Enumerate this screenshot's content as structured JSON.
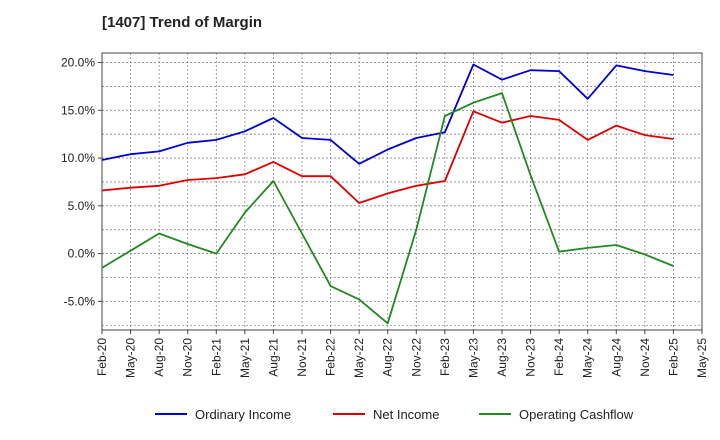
{
  "chart_data": {
    "type": "line",
    "title": "[1407]  Trend of Margin",
    "x": [
      "Feb-20",
      "May-20",
      "Aug-20",
      "Nov-20",
      "Feb-21",
      "May-21",
      "Aug-21",
      "Nov-21",
      "Feb-22",
      "May-22",
      "Aug-22",
      "Nov-22",
      "Feb-23",
      "May-23",
      "Aug-23",
      "Nov-23",
      "Feb-24",
      "May-24",
      "Aug-24",
      "Nov-24",
      "Feb-25",
      "May-25"
    ],
    "y_ticks": [
      "-5.0%",
      "0.0%",
      "5.0%",
      "10.0%",
      "15.0%",
      "20.0%"
    ],
    "y_tick_values": [
      -5,
      0,
      5,
      10,
      15,
      20
    ],
    "ylim": [
      -8,
      21
    ],
    "grid": true,
    "legend_position": "bottom",
    "series": [
      {
        "name": "Ordinary Income",
        "color": "#0000cc",
        "values": [
          9.8,
          10.4,
          10.7,
          11.6,
          11.9,
          12.8,
          14.2,
          12.1,
          11.9,
          9.4,
          10.9,
          12.1,
          12.7,
          19.8,
          18.2,
          19.2,
          19.1,
          16.2,
          19.7,
          19.1,
          18.7,
          null
        ]
      },
      {
        "name": "Net Income",
        "color": "#dd0000",
        "values": [
          6.6,
          6.9,
          7.1,
          7.7,
          7.9,
          8.3,
          9.6,
          8.1,
          8.1,
          5.3,
          6.3,
          7.1,
          7.6,
          14.9,
          13.7,
          14.4,
          14.0,
          11.9,
          13.4,
          12.4,
          12.0,
          null
        ]
      },
      {
        "name": "Operating Cashflow",
        "color": "#228822",
        "values": [
          -1.5,
          0.3,
          2.1,
          1.0,
          0.0,
          4.3,
          7.6,
          2.1,
          -3.4,
          -4.8,
          -7.3,
          2.5,
          14.4,
          15.8,
          16.8,
          8.2,
          0.2,
          0.6,
          0.9,
          -0.1,
          -1.3,
          null
        ]
      }
    ]
  }
}
